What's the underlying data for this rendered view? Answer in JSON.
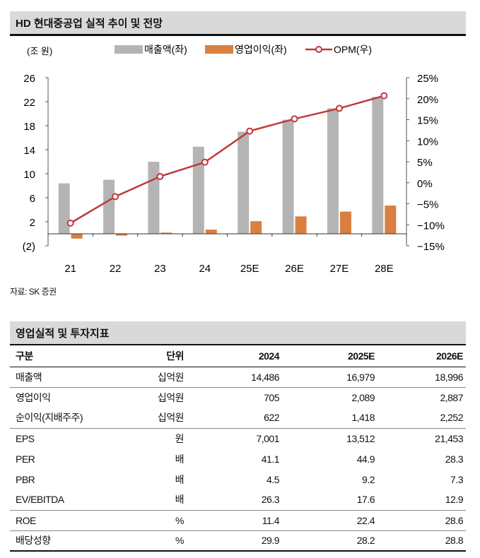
{
  "chart_title": "HD 현대중공업 실적 추이 및 전망",
  "source": "자료: SK 증권",
  "table_title": "영업실적 및 투자지표",
  "colors": {
    "revenue": "#b4b4b4",
    "op": "#d98040",
    "opm": "#c0393b"
  },
  "chart_data": {
    "type": "bar+line",
    "unit_label": "(조 원)",
    "categories": [
      "21",
      "22",
      "23",
      "24",
      "25E",
      "26E",
      "27E",
      "28E"
    ],
    "series": [
      {
        "name": "매출액(좌)",
        "axis": "left",
        "type": "bar",
        "values": [
          8.4,
          9.0,
          12.0,
          14.5,
          17.0,
          19.0,
          20.9,
          22.8
        ]
      },
      {
        "name": "영업이익(좌)",
        "axis": "left",
        "type": "bar",
        "values": [
          -0.8,
          -0.3,
          0.2,
          0.7,
          2.1,
          2.9,
          3.7,
          4.7
        ]
      },
      {
        "name": "OPM(우)",
        "axis": "right",
        "type": "line",
        "values": [
          -9.6,
          -3.3,
          1.5,
          4.9,
          12.3,
          15.2,
          17.7,
          20.7
        ]
      }
    ],
    "left_axis": {
      "ticks": [
        "26",
        "22",
        "18",
        "14",
        "10",
        "6",
        "2",
        "(2)"
      ],
      "tick_values": [
        26,
        22,
        18,
        14,
        10,
        6,
        2,
        -2
      ],
      "range": [
        -2,
        26
      ]
    },
    "right_axis": {
      "ticks": [
        "25%",
        "20%",
        "15%",
        "10%",
        "5%",
        "0%",
        "-5%",
        "-10%",
        "-15%"
      ],
      "tick_values": [
        25,
        20,
        15,
        10,
        5,
        0,
        -5,
        -10,
        -15
      ],
      "range": [
        -15,
        25
      ]
    }
  },
  "table": {
    "headers": [
      "구분",
      "단위",
      "2024",
      "2025E",
      "2026E"
    ],
    "rows": [
      [
        "매출액",
        "십억원",
        "14,486",
        "16,979",
        "18,996"
      ],
      [
        "영업이익",
        "십억원",
        "705",
        "2,089",
        "2,887"
      ],
      [
        "순이익(지배주주)",
        "십억원",
        "622",
        "1,418",
        "2,252"
      ],
      [
        "EPS",
        "원",
        "7,001",
        "13,512",
        "21,453"
      ],
      [
        "PER",
        "배",
        "41.1",
        "44.9",
        "28.3"
      ],
      [
        "PBR",
        "배",
        "4.5",
        "9.2",
        "7.3"
      ],
      [
        "EV/EBITDA",
        "배",
        "26.3",
        "17.6",
        "12.9"
      ],
      [
        "ROE",
        "%",
        "11.4",
        "22.4",
        "28.6"
      ],
      [
        "배당성향",
        "%",
        "29.9",
        "28.2",
        "28.8"
      ]
    ]
  }
}
